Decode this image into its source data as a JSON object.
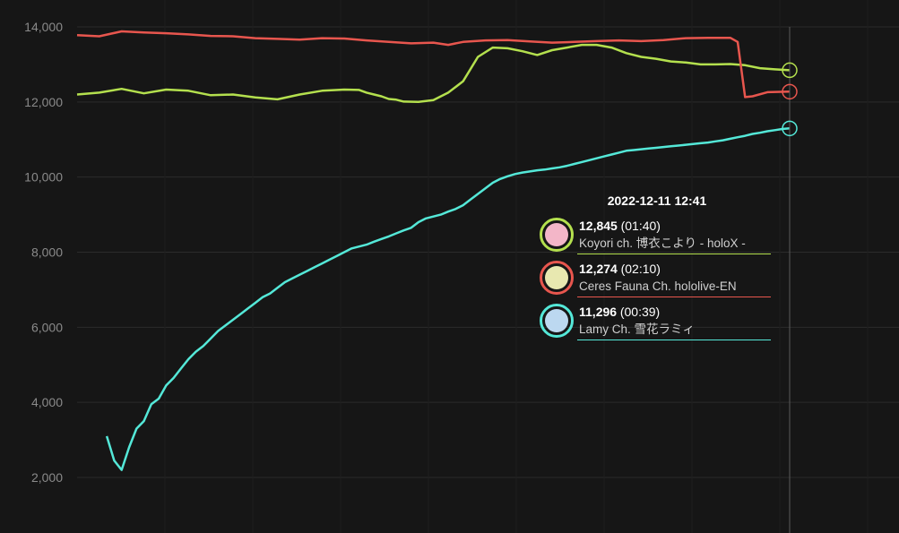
{
  "chart_data": {
    "type": "line",
    "yticks": [
      "2,000",
      "4,000",
      "6,000",
      "8,000",
      "10,000",
      "12,000",
      "14,000"
    ],
    "ytick_values": [
      2000,
      4000,
      6000,
      8000,
      10000,
      12000,
      14000
    ],
    "ylim": [
      1000,
      14400
    ],
    "grid": true,
    "colors": {
      "red": "#e8564e",
      "green": "#b4e04e",
      "cyan": "#54e8d8"
    },
    "series": [
      {
        "name": "Koyori ch. 博衣こより - holoX -",
        "key": "green",
        "x": [
          0,
          3,
          6,
          9,
          12,
          15,
          18,
          21,
          24,
          27,
          30,
          33,
          36,
          38,
          39,
          40,
          41,
          42,
          43,
          44,
          46,
          48,
          50,
          52,
          54,
          56,
          58,
          60,
          62,
          64,
          66,
          68,
          70,
          72,
          74,
          76,
          78,
          80,
          82,
          84,
          86,
          88,
          90,
          92,
          94,
          96
        ],
        "values": [
          12200,
          12250,
          12350,
          12230,
          12330,
          12300,
          12180,
          12200,
          12120,
          12070,
          12200,
          12300,
          12330,
          12320,
          12250,
          12200,
          12150,
          12080,
          12060,
          12010,
          12000,
          12050,
          12250,
          12550,
          13200,
          13450,
          13430,
          13350,
          13250,
          13380,
          13450,
          13520,
          13520,
          13450,
          13300,
          13200,
          13150,
          13080,
          13050,
          13000,
          13000,
          13010,
          12980,
          12900,
          12870,
          12845
        ]
      },
      {
        "name": "Ceres Fauna Ch. hololive-EN",
        "key": "red",
        "x": [
          0,
          3,
          6,
          9,
          12,
          15,
          18,
          21,
          24,
          27,
          30,
          33,
          36,
          39,
          42,
          45,
          48,
          50,
          52,
          55,
          58,
          61,
          64,
          67,
          70,
          73,
          76,
          79,
          82,
          85,
          88,
          89,
          90,
          91,
          93,
          96
        ],
        "values": [
          13780,
          13750,
          13880,
          13850,
          13830,
          13800,
          13760,
          13750,
          13700,
          13680,
          13660,
          13700,
          13690,
          13640,
          13600,
          13560,
          13580,
          13520,
          13600,
          13640,
          13650,
          13610,
          13580,
          13600,
          13620,
          13640,
          13620,
          13650,
          13700,
          13710,
          13710,
          13600,
          12130,
          12150,
          12260,
          12274
        ]
      },
      {
        "name": "Lamy Ch. 雪花ラミィ",
        "key": "cyan",
        "x": [
          4,
          5,
          6,
          7,
          8,
          9,
          10,
          11,
          12,
          13,
          14,
          15,
          16,
          17,
          18,
          19,
          20,
          21,
          22,
          23,
          24,
          25,
          26,
          27,
          28,
          29,
          30,
          31,
          32,
          33,
          34,
          35,
          36,
          37,
          38,
          39,
          40,
          41,
          42,
          43,
          44,
          45,
          46,
          47,
          48,
          49,
          50,
          51,
          52,
          53,
          54,
          55,
          56,
          57,
          58,
          59,
          60,
          61,
          62,
          63,
          64,
          65,
          66,
          67,
          68,
          69,
          70,
          71,
          72,
          73,
          74,
          75,
          76,
          77,
          78,
          79,
          80,
          81,
          82,
          83,
          84,
          85,
          86,
          87,
          88,
          89,
          90,
          91,
          92,
          93,
          94,
          95,
          96
        ],
        "values": [
          3100,
          2450,
          2200,
          2800,
          3300,
          3500,
          3950,
          4100,
          4450,
          4650,
          4900,
          5150,
          5350,
          5500,
          5700,
          5900,
          6050,
          6200,
          6350,
          6500,
          6650,
          6800,
          6900,
          7050,
          7200,
          7300,
          7400,
          7500,
          7600,
          7700,
          7800,
          7900,
          8000,
          8100,
          8150,
          8200,
          8280,
          8350,
          8420,
          8500,
          8580,
          8650,
          8800,
          8900,
          8950,
          9000,
          9080,
          9150,
          9250,
          9400,
          9550,
          9700,
          9850,
          9950,
          10020,
          10080,
          10120,
          10150,
          10180,
          10200,
          10230,
          10260,
          10300,
          10350,
          10400,
          10450,
          10500,
          10550,
          10600,
          10650,
          10700,
          10720,
          10740,
          10760,
          10780,
          10800,
          10820,
          10840,
          10860,
          10880,
          10900,
          10920,
          10950,
          10980,
          11020,
          11060,
          11100,
          11150,
          11180,
          11220,
          11250,
          11280,
          11296
        ]
      }
    ]
  },
  "tooltip": {
    "date": "2022-12-11 12:41",
    "rows": [
      {
        "value": "12,845",
        "time": "(01:40)",
        "name_bold": "Koyori ch.",
        "name_rest": " 博衣こより - holoX -",
        "color": "#b4e04e",
        "face": "#f3b6c8"
      },
      {
        "value": "12,274",
        "time": "(02:10)",
        "name_bold": "",
        "name_rest": "Ceres Fauna Ch. hololive-EN",
        "color": "#e8564e",
        "face": "#e8e8b0"
      },
      {
        "value": "11,296",
        "time": "(00:39)",
        "name_bold": "",
        "name_rest": "Lamy Ch. 雪花ラミィ",
        "color": "#54e8d8",
        "face": "#bcd8f0"
      }
    ]
  }
}
